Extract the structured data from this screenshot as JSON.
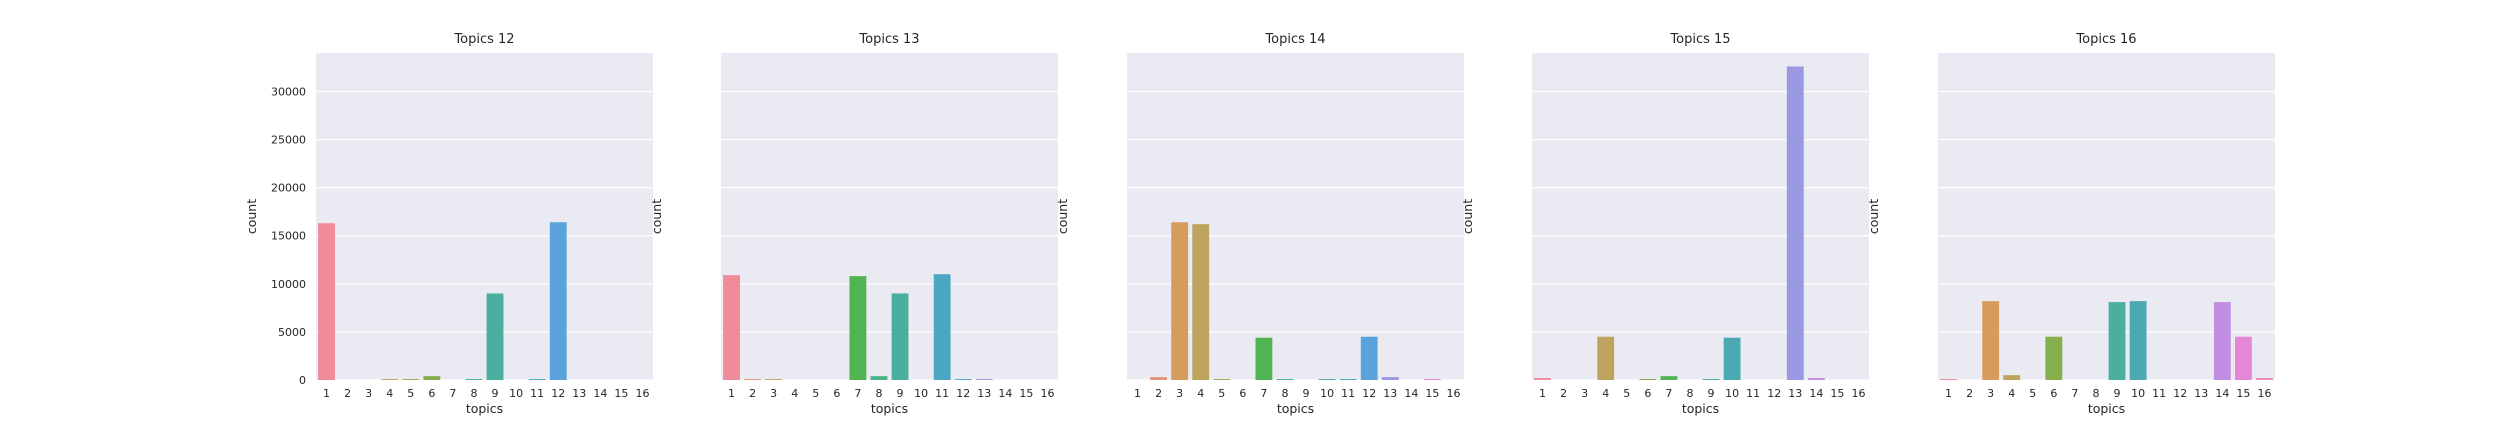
{
  "chart_data": [
    {
      "type": "bar",
      "title": "Topics 12",
      "xlabel": "topics",
      "ylabel": "count",
      "categories": [
        "1",
        "2",
        "3",
        "4",
        "5",
        "6",
        "7",
        "8",
        "9",
        "10",
        "11",
        "12",
        "13",
        "14",
        "15",
        "16"
      ],
      "values": [
        16300,
        0,
        0,
        100,
        100,
        400,
        0,
        100,
        9000,
        0,
        100,
        16400,
        0,
        0,
        0,
        0
      ],
      "ylim": [
        0,
        34000
      ],
      "yticks": [
        0,
        5000,
        10000,
        15000,
        20000,
        25000,
        30000
      ],
      "grid": true
    },
    {
      "type": "bar",
      "title": "Topics 13",
      "xlabel": "topics",
      "ylabel": "count",
      "categories": [
        "1",
        "2",
        "3",
        "4",
        "5",
        "6",
        "7",
        "8",
        "9",
        "10",
        "11",
        "12",
        "13",
        "14",
        "15",
        "16"
      ],
      "values": [
        10900,
        100,
        100,
        0,
        0,
        0,
        10800,
        400,
        9000,
        0,
        11000,
        100,
        100,
        0,
        0,
        0
      ],
      "ylim": [
        0,
        34000
      ],
      "grid": true
    },
    {
      "type": "bar",
      "title": "Topics 14",
      "xlabel": "topics",
      "ylabel": "count",
      "categories": [
        "1",
        "2",
        "3",
        "4",
        "5",
        "6",
        "7",
        "8",
        "9",
        "10",
        "11",
        "12",
        "13",
        "14",
        "15",
        "16"
      ],
      "values": [
        0,
        300,
        16400,
        16200,
        100,
        0,
        4400,
        100,
        0,
        100,
        100,
        4500,
        300,
        0,
        100,
        0
      ],
      "ylim": [
        0,
        34000
      ],
      "grid": true
    },
    {
      "type": "bar",
      "title": "Topics 15",
      "xlabel": "topics",
      "ylabel": "count",
      "categories": [
        "1",
        "2",
        "3",
        "4",
        "5",
        "6",
        "7",
        "8",
        "9",
        "10",
        "11",
        "12",
        "13",
        "14",
        "15",
        "16"
      ],
      "values": [
        200,
        0,
        0,
        4500,
        0,
        100,
        400,
        0,
        100,
        4400,
        0,
        0,
        32600,
        200,
        0,
        0
      ],
      "ylim": [
        0,
        34000
      ],
      "grid": true
    },
    {
      "type": "bar",
      "title": "Topics 16",
      "xlabel": "topics",
      "ylabel": "count",
      "categories": [
        "1",
        "2",
        "3",
        "4",
        "5",
        "6",
        "7",
        "8",
        "9",
        "10",
        "11",
        "12",
        "13",
        "14",
        "15",
        "16"
      ],
      "values": [
        100,
        0,
        8200,
        500,
        0,
        4500,
        0,
        0,
        8100,
        8200,
        0,
        0,
        0,
        8100,
        4500,
        200
      ],
      "ylim": [
        0,
        34000
      ],
      "grid": true
    }
  ],
  "palette": [
    "#f08b9b",
    "#e8927b",
    "#d59c5c",
    "#bda35e",
    "#a5aa4e",
    "#85ae4c",
    "#51b452",
    "#4ab38a",
    "#4aaf9f",
    "#4baab1",
    "#4ca7c4",
    "#5aa2db",
    "#9a98e3",
    "#c18ee4",
    "#e487d6",
    "#ee89b5"
  ],
  "style": {
    "axes_facecolor": "#eaeaf2",
    "grid_color": "#ffffff"
  }
}
